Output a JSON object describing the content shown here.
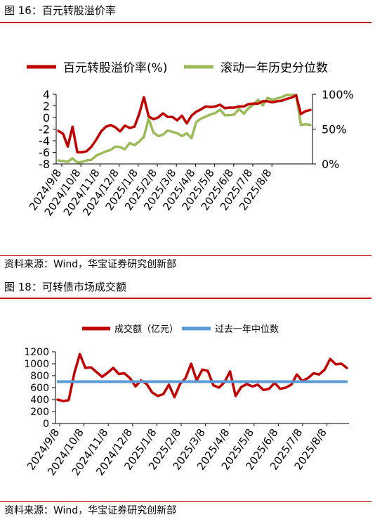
{
  "figures": [
    {
      "title": "图 16：百元转股溢价率",
      "source": "资料来源：Wind，华宝证券研究创新部"
    },
    {
      "title": "图 18：可转债市场成交额",
      "source": "资料来源：Wind，华宝证券研究创新部"
    }
  ],
  "colors": {
    "red": "#c00000",
    "green": "#9bbb59",
    "blue": "#5b9bd5"
  },
  "chart_data": [
    {
      "type": "line",
      "title": "",
      "legend_placement": "top",
      "grid": false,
      "y_left": {
        "ylim": [
          -8,
          4
        ],
        "ticks": [
          "4",
          "2",
          "0",
          "-2",
          "-4",
          "-6",
          "-8"
        ]
      },
      "y_right": {
        "ylim": [
          0,
          100
        ],
        "ticks": [
          "100%",
          "50%",
          "0%"
        ]
      },
      "x_tick_labels": [
        "2024/9/8",
        "2024/10/8",
        "2024/11/8",
        "2024/12/8",
        "2025/1/8",
        "2025/2/8",
        "2025/3/8",
        "2025/4/8",
        "2025/5/8",
        "2025/6/8",
        "2025/7/8",
        "2025/8/8"
      ],
      "series": [
        {
          "name": "百元转股溢价率(%)",
          "axis": "left",
          "color": "#c00000",
          "values": [
            -2.3,
            -2.8,
            -5.0,
            -1.6,
            -6.0,
            -6.0,
            -5.8,
            -5.0,
            -3.8,
            -2.4,
            -1.6,
            -1.3,
            -1.7,
            -2.4,
            -1.4,
            -1.8,
            -1.6,
            0.6,
            3.5,
            0.2,
            -0.3,
            0.0,
            0.7,
            0.1,
            0.1,
            -0.5,
            0.3,
            -1.0,
            0.3,
            1.0,
            1.4,
            1.9,
            1.8,
            1.9,
            2.2,
            1.6,
            1.7,
            1.7,
            1.9,
            1.9,
            2.3,
            2.4,
            2.4,
            2.8,
            2.8,
            2.6,
            2.8,
            2.9,
            3.2,
            3.4,
            3.8,
            0.6,
            1.1,
            1.3
          ]
        },
        {
          "name": "滚动一年历史分位数",
          "axis": "right",
          "color": "#9bbb59",
          "values": [
            5,
            4,
            3,
            8,
            2,
            3,
            5,
            6,
            12,
            15,
            18,
            20,
            25,
            24,
            21,
            30,
            27,
            32,
            39,
            65,
            45,
            40,
            42,
            48,
            46,
            44,
            40,
            44,
            37,
            60,
            65,
            68,
            71,
            73,
            78,
            70,
            70,
            71,
            79,
            72,
            80,
            85,
            92,
            84,
            95,
            92,
            94,
            96,
            99,
            99,
            99,
            56,
            57,
            56
          ]
        }
      ]
    },
    {
      "type": "line",
      "title": "",
      "legend_placement": "top",
      "grid": false,
      "ylim": [
        0,
        1200
      ],
      "y_ticks": [
        "1200",
        "1000",
        "800",
        "600",
        "400",
        "200",
        "0"
      ],
      "x_tick_labels": [
        "2024/9/8",
        "2024/10/8",
        "2024/11/8",
        "2024/12/8",
        "2025/1/8",
        "2025/2/8",
        "2025/3/8",
        "2025/4/8",
        "2025/5/8",
        "2025/6/8",
        "2025/7/8",
        "2025/8/8"
      ],
      "series": [
        {
          "name": "成交额（亿元）",
          "color": "#c00000",
          "values": [
            400,
            375,
            390,
            840,
            1160,
            930,
            940,
            860,
            780,
            850,
            930,
            830,
            840,
            760,
            620,
            720,
            660,
            520,
            460,
            490,
            650,
            440,
            660,
            760,
            1000,
            720,
            900,
            880,
            640,
            600,
            690,
            870,
            460,
            610,
            660,
            620,
            650,
            560,
            580,
            680,
            580,
            600,
            650,
            820,
            710,
            760,
            840,
            820,
            900,
            1080,
            990,
            1000,
            930
          ]
        },
        {
          "name": "过去一年中位数",
          "color": "#5b9bd5",
          "constant": 700
        }
      ]
    }
  ]
}
